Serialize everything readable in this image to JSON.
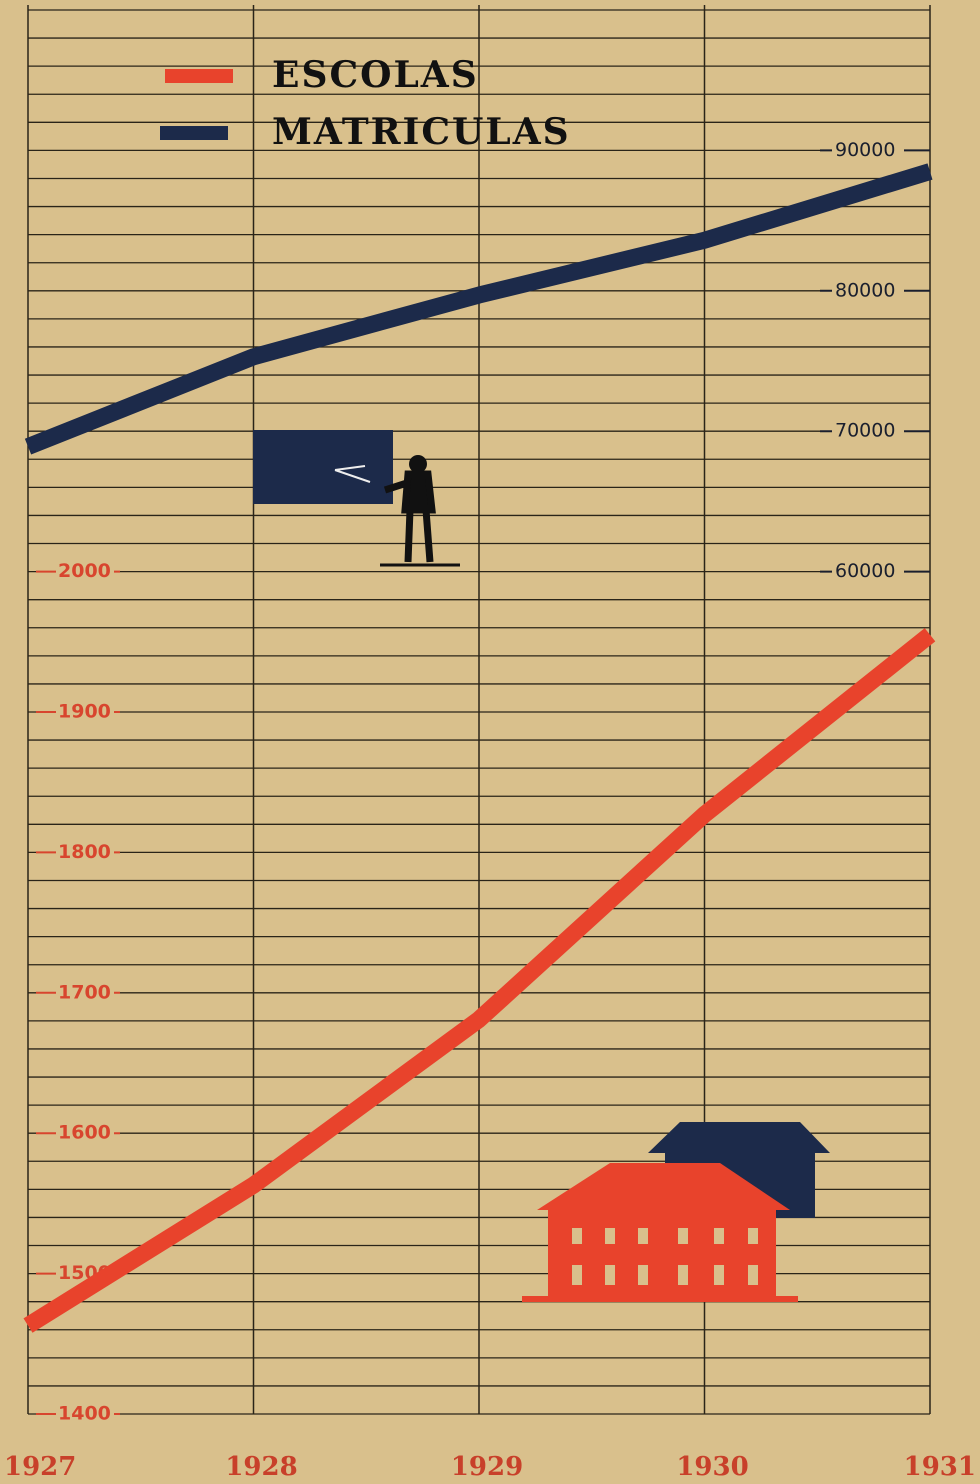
{
  "chart_data": {
    "type": "line",
    "x": [
      1927,
      1928,
      1929,
      1930,
      1931
    ],
    "xlim": [
      1927,
      1931
    ],
    "xticks": [
      1927,
      1928,
      1929,
      1930,
      1931
    ],
    "ylim": [
      1400,
      2400
    ],
    "yticks": [
      1400,
      1500,
      1600,
      1700,
      1800,
      1900,
      2000
    ],
    "y2lim": [
      0,
      100000
    ],
    "y2ticks": [
      60000,
      70000,
      80000,
      90000
    ],
    "grid": true,
    "series": [
      {
        "name": "ESCOLAS",
        "color": "#e8432c",
        "values": [
          1463,
          1563,
          1681,
          1827,
          1955
        ]
      },
      {
        "name": "MATRICULAS",
        "color": "#1c2a4a",
        "values": [
          68900,
          75300,
          79700,
          83600,
          88500
        ],
        "axis": "y2"
      }
    ]
  }
}
